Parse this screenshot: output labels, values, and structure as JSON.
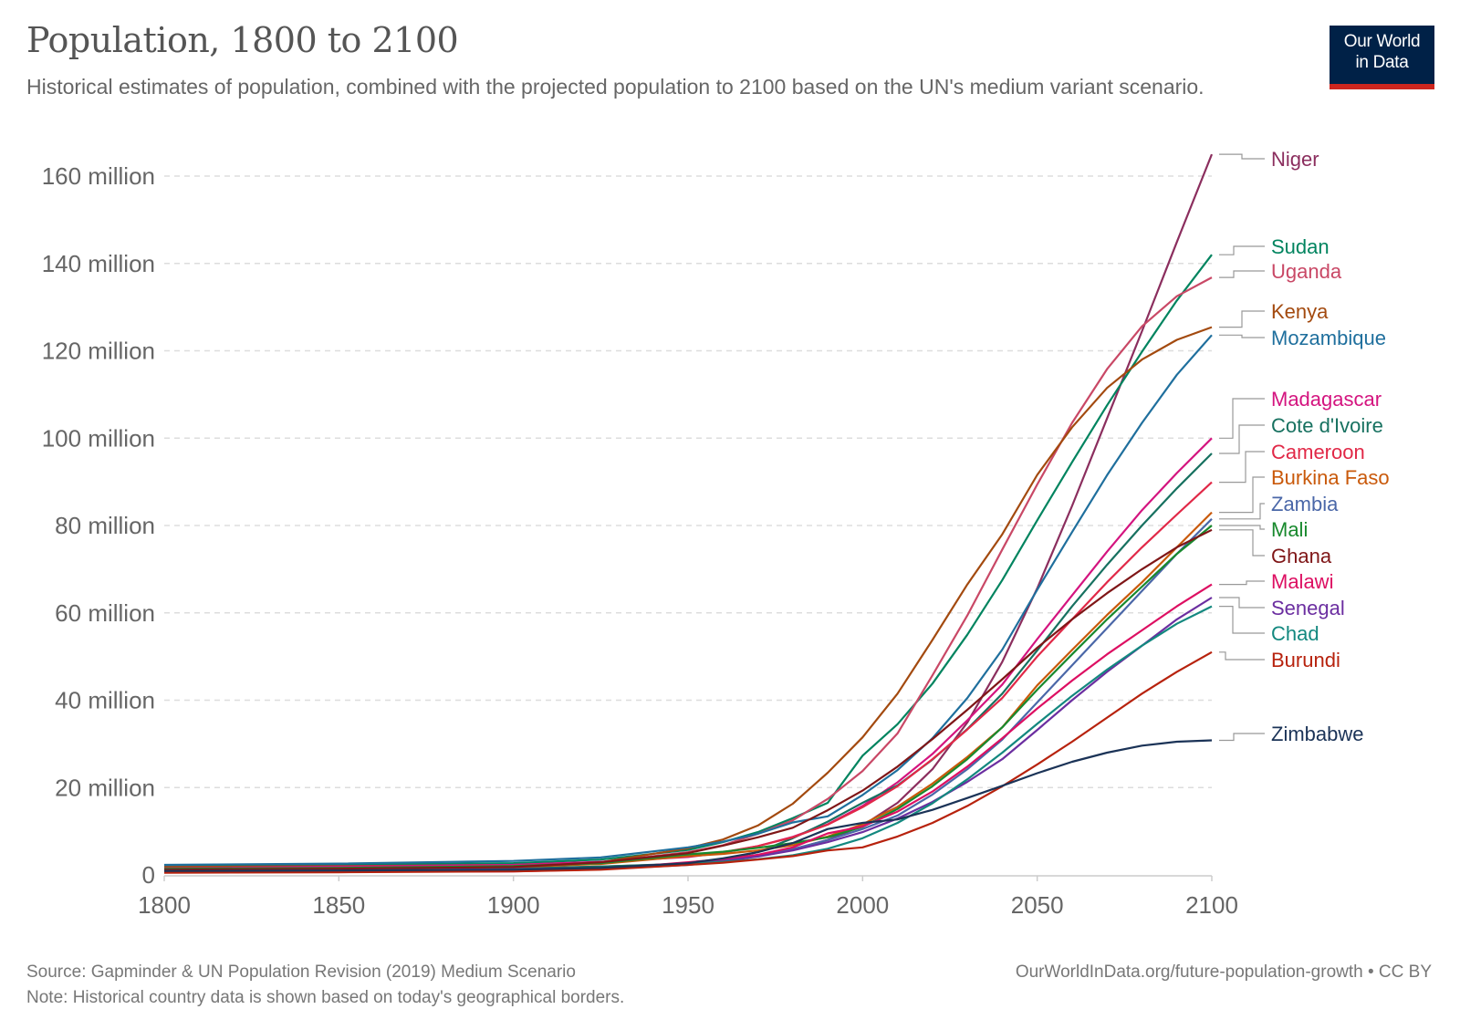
{
  "header": {
    "title": "Population, 1800 to 2100",
    "subtitle": "Historical estimates of population, combined with the projected population to 2100 based on the UN's medium variant scenario."
  },
  "logo": {
    "line1": "Our World",
    "line2": "in Data",
    "bg_color": "#002147",
    "accent_color": "#ce261e"
  },
  "footer": {
    "source": "Source: Gapminder & UN Population Revision (2019) Medium Scenario",
    "note": "Note: Historical country data is shown based on today's geographical borders.",
    "url_license": "OurWorldInData.org/future-population-growth • CC BY"
  },
  "chart_data": {
    "type": "line",
    "title": "Population, 1800 to 2100",
    "xlabel": "",
    "ylabel": "",
    "xlim": [
      1800,
      2100
    ],
    "ylim": [
      0,
      165000000
    ],
    "grid": "horizontal-dashed",
    "legend": "right-end-labels",
    "x_ticks": [
      1800,
      1850,
      1900,
      1950,
      2000,
      2050,
      2100
    ],
    "x_tick_labels": [
      "1800",
      "1850",
      "1900",
      "1950",
      "2000",
      "2050",
      "2100"
    ],
    "y_ticks": [
      0,
      20000000,
      40000000,
      60000000,
      80000000,
      100000000,
      120000000,
      140000000,
      160000000
    ],
    "y_tick_labels": [
      "0",
      "20 million",
      "40 million",
      "60 million",
      "80 million",
      "100 million",
      "120 million",
      "140 million",
      "160 million"
    ],
    "x": [
      1800,
      1850,
      1900,
      1925,
      1950,
      1960,
      1970,
      1980,
      1990,
      2000,
      2010,
      2020,
      2030,
      2040,
      2050,
      2060,
      2070,
      2080,
      2090,
      2100
    ],
    "series": [
      {
        "name": "Niger",
        "color": "#883039",
        "values": [
          1.2,
          1.3,
          1.5,
          1.9,
          2.5,
          3.4,
          4.5,
          5.9,
          8.0,
          11.3,
          16.5,
          24.2,
          34.9,
          48.8,
          65.6,
          84.5,
          104.5,
          124.5,
          144.9,
          165.0
        ]
      },
      {
        "name": "Sudan",
        "color": "#00847e",
        "values": [
          2.0,
          2.3,
          2.7,
          3.5,
          5.7,
          7.5,
          9.8,
          13.0,
          16.5,
          27.3,
          34.5,
          43.8,
          55.0,
          67.5,
          81.2,
          94.5,
          107.5,
          119.8,
          131.5,
          142.0
        ]
      },
      {
        "name": "Uganda",
        "color": "#c84b6b",
        "values": [
          1.2,
          1.5,
          2.0,
          2.9,
          5.2,
          6.8,
          9.4,
          12.5,
          17.4,
          23.8,
          32.4,
          45.7,
          59.4,
          74.5,
          89.4,
          103.5,
          115.8,
          125.6,
          132.5,
          136.8
        ]
      },
      {
        "name": "Kenya",
        "color": "#9a5129",
        "values": [
          1.8,
          2.0,
          2.3,
          2.9,
          6.1,
          8.1,
          11.3,
          16.3,
          23.4,
          31.5,
          41.5,
          53.8,
          66.5,
          78.0,
          91.6,
          102.5,
          111.5,
          118.0,
          122.5,
          125.4
        ]
      },
      {
        "name": "Mozambique",
        "color": "#286bbb",
        "values": [
          2.3,
          2.6,
          3.2,
          4.0,
          6.3,
          7.6,
          9.4,
          12.0,
          13.4,
          18.3,
          24.0,
          31.3,
          40.5,
          51.6,
          65.3,
          78.5,
          91.5,
          103.5,
          114.5,
          123.6
        ]
      },
      {
        "name": "Madagascar",
        "color": "#d73c50",
        "values": [
          1.5,
          1.9,
          2.3,
          3.0,
          4.1,
          5.1,
          6.6,
          8.7,
          11.6,
          15.8,
          21.2,
          27.7,
          35.4,
          43.6,
          54.0,
          64.0,
          74.0,
          83.5,
          92.0,
          100.0
        ]
      },
      {
        "name": "Cote d'Ivoire",
        "color": "#00295b",
        "values": [
          1.0,
          1.2,
          1.5,
          1.9,
          2.6,
          3.5,
          5.2,
          8.4,
          12.2,
          16.5,
          20.5,
          26.4,
          33.4,
          41.5,
          51.4,
          61.5,
          71.0,
          80.0,
          88.5,
          96.5
        ]
      },
      {
        "name": "Cameroon",
        "color": "#e63912",
        "values": [
          1.3,
          1.6,
          2.0,
          2.6,
          4.5,
          5.2,
          6.6,
          8.6,
          11.5,
          15.5,
          20.3,
          26.5,
          33.3,
          40.5,
          50.0,
          58.5,
          67.0,
          75.0,
          82.5,
          89.9
        ]
      },
      {
        "name": "Burkina Faso",
        "color": "#c15065",
        "values": [
          1.0,
          1.3,
          1.8,
          2.5,
          4.3,
          4.8,
          5.6,
          6.8,
          8.8,
          11.6,
          15.6,
          20.9,
          27.0,
          33.8,
          43.4,
          51.5,
          59.5,
          67.0,
          75.0,
          83.0
        ]
      },
      {
        "name": "Zambia",
        "color": "#4c6a9c",
        "values": [
          0.7,
          0.8,
          1.0,
          1.3,
          2.3,
          3.1,
          4.3,
          5.9,
          8.0,
          10.5,
          13.6,
          18.4,
          24.2,
          31.0,
          39.5,
          48.0,
          56.5,
          65.0,
          73.5,
          81.5
        ]
      },
      {
        "name": "Mali",
        "color": "#18470f",
        "values": [
          1.4,
          1.6,
          2.0,
          2.7,
          4.7,
          5.3,
          6.2,
          7.3,
          8.6,
          11.0,
          15.1,
          20.3,
          26.5,
          33.8,
          42.4,
          50.5,
          58.5,
          66.0,
          73.5,
          80.0
        ]
      },
      {
        "name": "Ghana",
        "color": "#6d3e91",
        "values": [
          1.2,
          1.4,
          1.8,
          2.9,
          5.0,
          6.7,
          8.6,
          10.8,
          14.8,
          19.3,
          24.8,
          31.1,
          37.8,
          44.8,
          52.0,
          58.5,
          64.5,
          70.0,
          75.0,
          79.0
        ]
      },
      {
        "name": "Malawi",
        "color": "#00875e",
        "values": [
          0.6,
          0.7,
          0.8,
          1.3,
          2.9,
          3.6,
          4.6,
          6.3,
          9.5,
          11.1,
          14.5,
          19.1,
          24.8,
          31.3,
          38.1,
          44.5,
          50.5,
          56.0,
          61.5,
          66.5
        ]
      },
      {
        "name": "Senegal",
        "color": "#b13507",
        "values": [
          0.8,
          1.0,
          1.3,
          1.6,
          2.5,
          3.2,
          4.2,
          5.6,
          7.5,
          9.8,
          12.9,
          16.7,
          21.3,
          26.5,
          33.2,
          40.0,
          46.5,
          52.5,
          58.5,
          63.5
        ]
      },
      {
        "name": "Chad",
        "color": "#4c6a9c",
        "values": [
          0.9,
          1.0,
          1.2,
          1.6,
          2.5,
          3.0,
          3.6,
          4.5,
          6.0,
          8.4,
          11.9,
          16.4,
          21.9,
          28.0,
          34.6,
          41.0,
          47.0,
          52.5,
          57.5,
          61.5
        ]
      },
      {
        "name": "Burundi",
        "color": "#883039",
        "values": [
          0.5,
          0.6,
          0.8,
          1.2,
          2.3,
          2.8,
          3.5,
          4.3,
          5.6,
          6.3,
          8.8,
          11.9,
          15.8,
          20.3,
          25.3,
          30.5,
          36.0,
          41.5,
          46.5,
          51.0
        ]
      },
      {
        "name": "Zimbabwe",
        "color": "#18470f",
        "values": [
          0.9,
          1.0,
          1.2,
          1.6,
          2.7,
          3.8,
          5.2,
          7.3,
          10.5,
          11.9,
          12.7,
          14.9,
          17.6,
          20.4,
          23.3,
          25.9,
          28.0,
          29.6,
          30.5,
          30.8
        ]
      }
    ],
    "series_colors": {
      "Niger": "#8b2e5e",
      "Sudan": "#00845f",
      "Uganda": "#c94866",
      "Kenya": "#a34a0f",
      "Mozambique": "#1f6f9d",
      "Madagascar": "#d4147f",
      "Cote d'Ivoire": "#177160",
      "Cameroon": "#e12847",
      "Burkina Faso": "#c9590a",
      "Zambia": "#4a67a8",
      "Mali": "#18892d",
      "Ghana": "#7f1617",
      "Malawi": "#dd0f62",
      "Senegal": "#6b2ea0",
      "Chad": "#13887f",
      "Burundi": "#b7220d",
      "Zimbabwe": "#1b3357"
    },
    "units": "million people"
  }
}
